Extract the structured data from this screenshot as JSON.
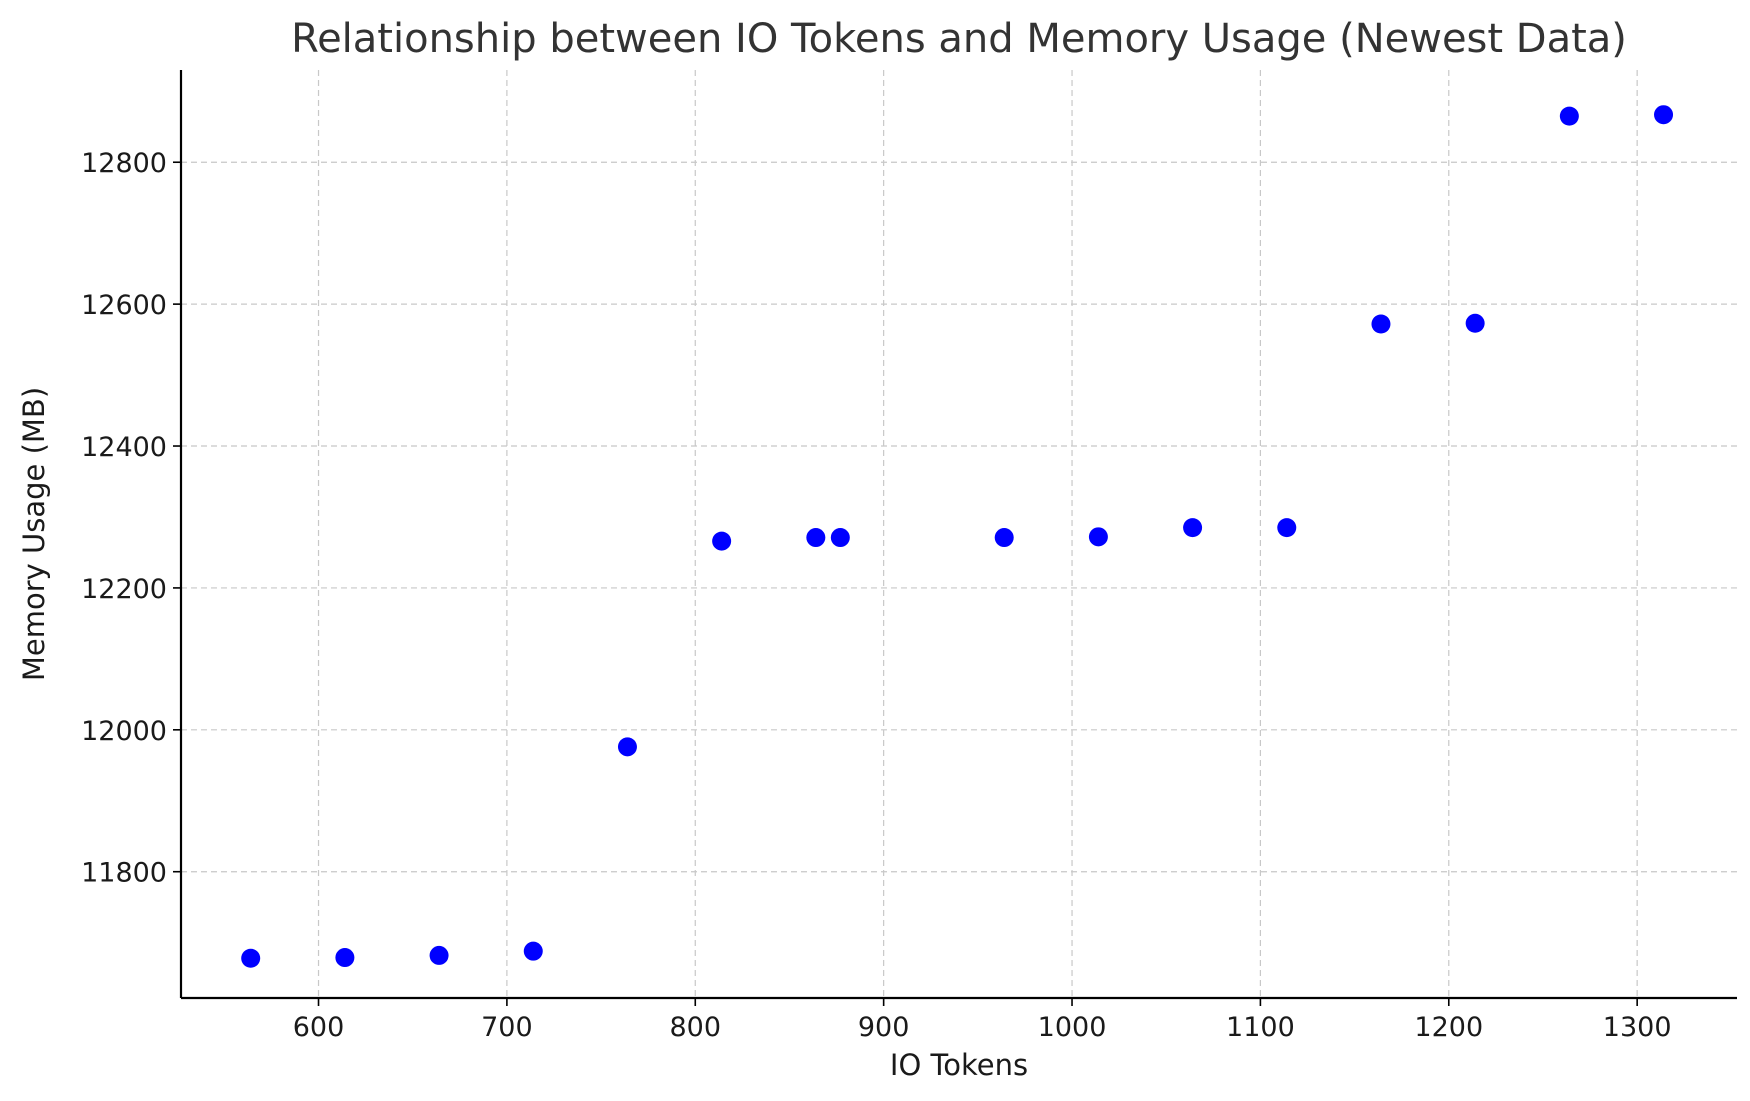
{
  "chart_data": {
    "type": "scatter",
    "title": "Relationship between IO Tokens and Memory Usage (Newest Data)",
    "xlabel": "IO Tokens",
    "ylabel": "Memory Usage (MB)",
    "xlim": [
      527,
      1353
    ],
    "ylim": [
      11622,
      12930
    ],
    "xticks": [
      600,
      700,
      800,
      900,
      1000,
      1100,
      1200,
      1300
    ],
    "yticks": [
      11800,
      12000,
      12200,
      12400,
      12600,
      12800
    ],
    "grid": true,
    "point_color": "#0000ff",
    "series": [
      {
        "x": [
          564,
          614,
          664,
          714,
          764,
          814,
          864,
          877,
          964,
          1014,
          1064,
          1114,
          1164,
          1214,
          1264,
          1314
        ],
        "y": [
          11678,
          11679,
          11682,
          11688,
          11976,
          12266,
          12271,
          12271,
          12271,
          12272,
          12285,
          12285,
          12572,
          12573,
          12865,
          12867
        ]
      }
    ]
  }
}
